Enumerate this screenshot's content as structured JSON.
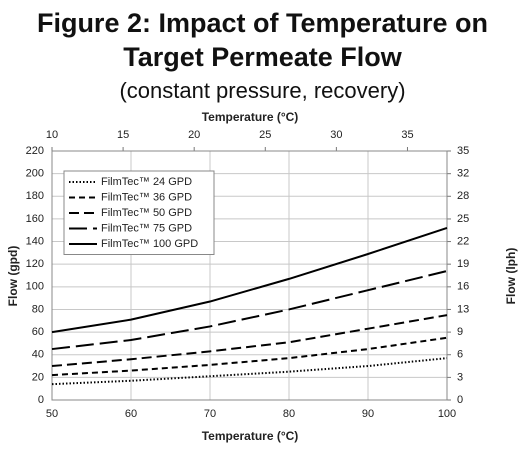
{
  "chart_data": {
    "type": "line",
    "title": "Figure 2: Impact of Temperature on Target Permeate Flow",
    "subtitle": "(constant pressure, recovery)",
    "x_label": "Temperature (°C)",
    "x2_label": "Temperature (°C)",
    "y_label": "Flow (gpd)",
    "y2_label": "Flow (lph)",
    "x": [
      50,
      60,
      70,
      80,
      90,
      100
    ],
    "xlim": [
      50,
      100
    ],
    "xticks": [
      50,
      60,
      70,
      80,
      90,
      100
    ],
    "x2lim": [
      10,
      37.78
    ],
    "x2ticks": [
      10,
      15,
      20,
      25,
      30,
      35
    ],
    "ylim": [
      0,
      220
    ],
    "yticks": [
      0,
      20,
      40,
      60,
      80,
      100,
      120,
      140,
      160,
      180,
      200,
      220
    ],
    "y2lim": [
      0,
      34.7
    ],
    "y2ticks": [
      0,
      {
        "value": 3.15,
        "label": "3"
      },
      {
        "value": 6.31,
        "label": "6"
      },
      {
        "value": 9.46,
        "label": "9"
      },
      {
        "value": 12.62,
        "label": "13"
      },
      {
        "value": 15.77,
        "label": "16"
      },
      {
        "value": 18.93,
        "label": "19"
      },
      {
        "value": 22.08,
        "label": "22"
      },
      {
        "value": 25.23,
        "label": "25"
      },
      {
        "value": 28.39,
        "label": "28"
      },
      {
        "value": 31.54,
        "label": "32"
      },
      {
        "value": 34.7,
        "label": "35"
      }
    ],
    "grid": true,
    "legend": "upper left",
    "series": [
      {
        "name": "FilmTec™ 24 GPD",
        "color": "#000000",
        "dash": "dotted",
        "values": [
          14,
          17,
          21,
          25,
          30,
          37
        ]
      },
      {
        "name": "FilmTec™ 36 GPD",
        "color": "#000000",
        "dash": "short",
        "values": [
          22,
          26,
          31,
          37,
          45,
          55
        ]
      },
      {
        "name": "FilmTec™ 50 GPD",
        "color": "#000000",
        "dash": "medium",
        "values": [
          30,
          36,
          43,
          51,
          63,
          75
        ]
      },
      {
        "name": "FilmTec™ 75 GPD",
        "color": "#000000",
        "dash": "long",
        "values": [
          45,
          53,
          65,
          80,
          97,
          114
        ]
      },
      {
        "name": "FilmTec™ 100 GPD",
        "color": "#000000",
        "dash": "solid",
        "values": [
          60,
          71,
          87,
          107,
          129,
          152
        ]
      }
    ]
  }
}
